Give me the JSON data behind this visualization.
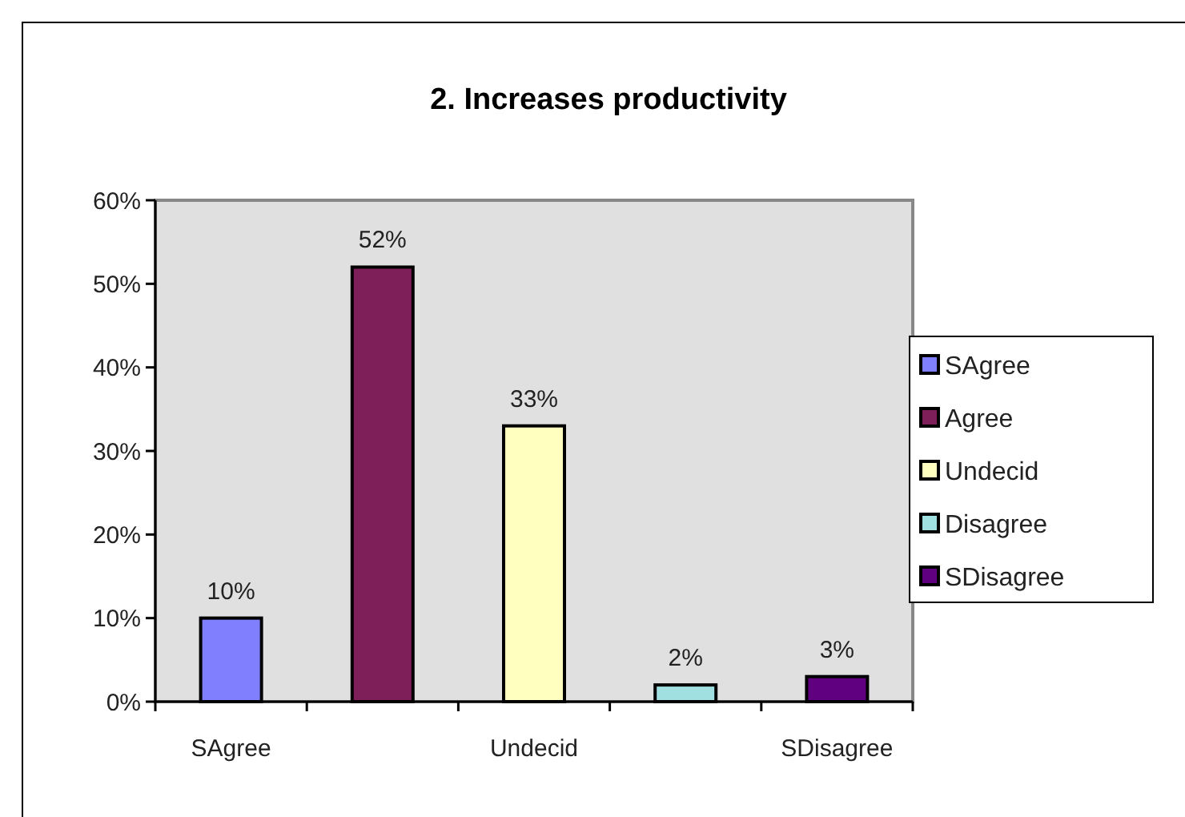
{
  "chart_data": {
    "type": "bar",
    "title": "2. Increases productivity",
    "categories": [
      "SAgree",
      null,
      "Undecid",
      null,
      "SDisagree"
    ],
    "series": [
      {
        "name": "SAgree",
        "color": "#8080ff",
        "values": [
          10,
          null,
          null,
          null,
          null
        ],
        "value_labels": [
          "10%",
          null,
          null,
          null,
          null
        ]
      },
      {
        "name": "Agree",
        "color": "#7f1f5a",
        "values": [
          null,
          52,
          null,
          null,
          null
        ],
        "value_labels": [
          null,
          "52%",
          null,
          null,
          null
        ]
      },
      {
        "name": "Undecid",
        "color": "#ffffc0",
        "values": [
          null,
          null,
          33,
          null,
          null
        ],
        "value_labels": [
          null,
          null,
          "33%",
          null,
          null
        ]
      },
      {
        "name": "Disagree",
        "color": "#a0e0e0",
        "values": [
          null,
          null,
          null,
          2,
          null
        ],
        "value_labels": [
          null,
          null,
          null,
          "2%",
          null
        ]
      },
      {
        "name": "SDisagree",
        "color": "#600080",
        "values": [
          null,
          null,
          null,
          null,
          3
        ],
        "value_labels": [
          null,
          null,
          null,
          null,
          "3%"
        ]
      }
    ],
    "ylim": [
      0,
      60
    ],
    "yticks": [
      {
        "value": 0,
        "label": "0%"
      },
      {
        "value": 10,
        "label": "10%"
      },
      {
        "value": 20,
        "label": "20%"
      },
      {
        "value": 30,
        "label": "30%"
      },
      {
        "value": 40,
        "label": "40%"
      },
      {
        "value": 50,
        "label": "50%"
      },
      {
        "value": 60,
        "label": "60%"
      }
    ],
    "legend": "right"
  }
}
